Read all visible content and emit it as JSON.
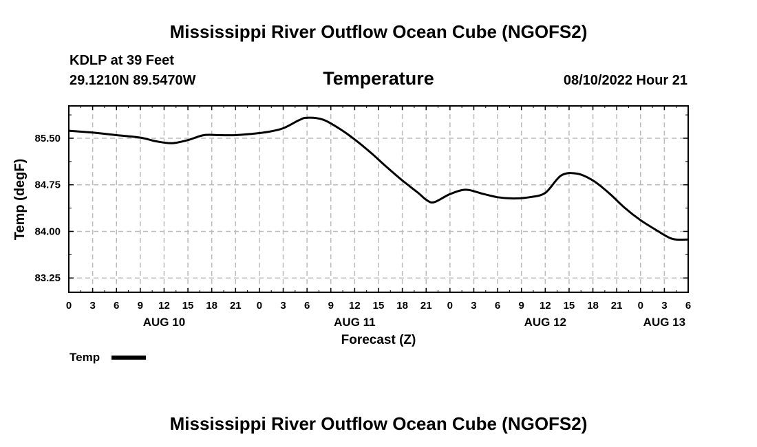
{
  "header": {
    "title": "Mississippi River Outflow Ocean Cube (NGOFS2)",
    "station_line": "KDLP at 39 Feet",
    "coords": "29.1210N  89.5470W",
    "subtitle": "Temperature",
    "datetime": "08/10/2022 Hour 21"
  },
  "footer": {
    "title": "Mississippi River Outflow Ocean Cube (NGOFS2)"
  },
  "chart_data": {
    "type": "line",
    "title": "Temperature",
    "xlabel": "Forecast (Z)",
    "ylabel": "Temp (degF)",
    "x_unit": "hours from AUG 10 00Z",
    "xlim": [
      0,
      78
    ],
    "ylim": [
      83.02,
      86.02
    ],
    "grid": true,
    "x_tick_step_hours": 3,
    "x_tick_labels": [
      "0",
      "3",
      "6",
      "9",
      "12",
      "15",
      "18",
      "21",
      "0",
      "3",
      "6",
      "9",
      "12",
      "15",
      "18",
      "21",
      "0",
      "3",
      "6",
      "9",
      "12",
      "15",
      "18",
      "21",
      "0",
      "3",
      "6"
    ],
    "date_labels": [
      {
        "label": "AUG 10",
        "hour": 12
      },
      {
        "label": "AUG 11",
        "hour": 36
      },
      {
        "label": "AUG 12",
        "hour": 60
      },
      {
        "label": "AUG 13",
        "hour": 75
      }
    ],
    "y_ticks": [
      83.25,
      84.0,
      84.75,
      85.5
    ],
    "y_tick_labels": [
      "83.25",
      "84.00",
      "84.75",
      "85.50"
    ],
    "legend": {
      "position": "bottom-left",
      "entries": [
        "Temp"
      ]
    },
    "series": [
      {
        "name": "Temp",
        "color": "#000000",
        "x": [
          0,
          3,
          6,
          9,
          11,
          13,
          15,
          17,
          19,
          21,
          23,
          25,
          27,
          29,
          30,
          32,
          34,
          36,
          38,
          40,
          42,
          44,
          45,
          46,
          48,
          50,
          52,
          54,
          56,
          58,
          60,
          62,
          64,
          66,
          68,
          70,
          72,
          74,
          76,
          78
        ],
        "values": [
          85.62,
          85.59,
          85.55,
          85.51,
          85.45,
          85.42,
          85.47,
          85.55,
          85.55,
          85.55,
          85.57,
          85.6,
          85.66,
          85.79,
          85.83,
          85.8,
          85.66,
          85.48,
          85.27,
          85.04,
          84.82,
          84.62,
          84.51,
          84.47,
          84.6,
          84.67,
          84.61,
          84.55,
          84.53,
          84.55,
          84.62,
          84.9,
          84.93,
          84.82,
          84.62,
          84.38,
          84.18,
          84.02,
          83.88,
          83.87
        ]
      }
    ]
  }
}
